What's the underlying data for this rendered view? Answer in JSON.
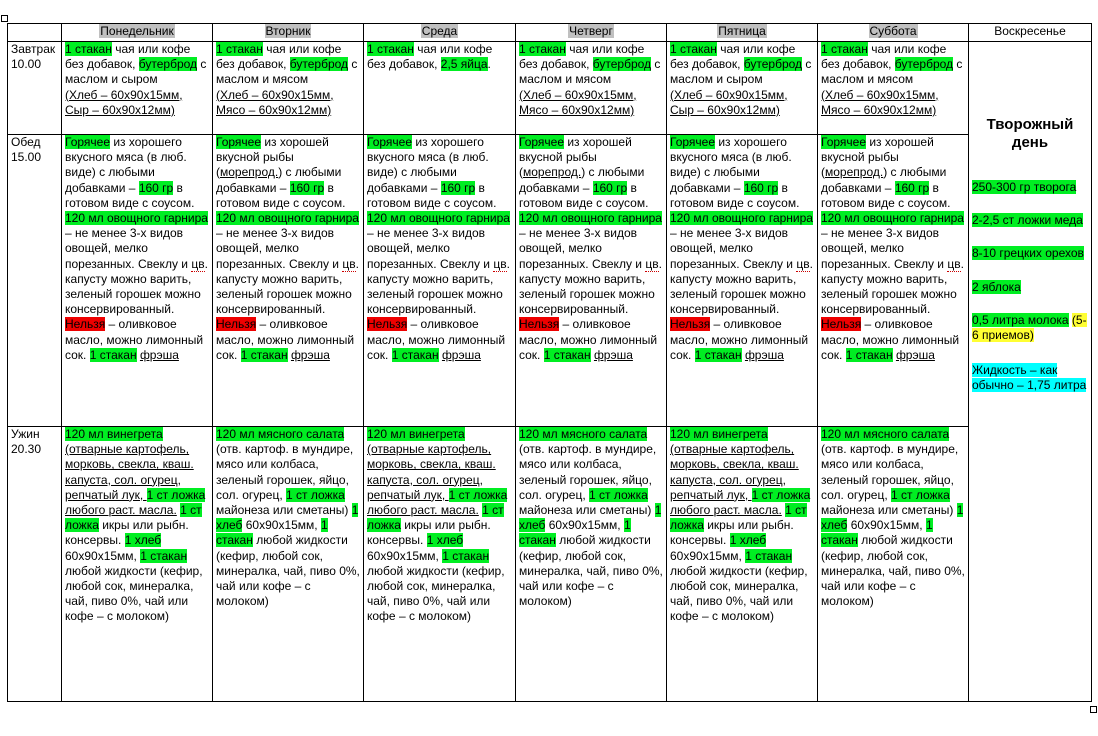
{
  "days": [
    "Понедельник",
    "Вторник",
    "Среда",
    "Четверг",
    "Пятница",
    "Суббота",
    "Воскресенье"
  ],
  "meals": {
    "breakfast": {
      "name": "Завтрак",
      "time": "10.00"
    },
    "lunch": {
      "name": "Обед",
      "time": "15.00"
    },
    "dinner": {
      "name": "Ужин",
      "time": "20.30"
    }
  },
  "breakfast": {
    "cup": "1 стакан",
    "drink": " чая или кофе без добавок, ",
    "sandwich": "бутерброд",
    "with_butter": " с маслом и ",
    "cheese": "сыром",
    "meat": "мясом",
    "note_cheese": "(Хлеб – 60х90х15мм, Сыр – 60х90х12мм)",
    "note_meat": "(Хлеб – 60х90х15мм, Мясо – 60х90х12мм)",
    "wed_drink": " чая или кофе без добавок, ",
    "wed_eggs": "2,5 яйца",
    "wed_dot": "."
  },
  "lunch": {
    "hot": "Горячее",
    "meat_text": " из хорошего вкусного мяса (в люб. виде) с любыми добавками – ",
    "fish_text1": " из хорошей вкусной рыбы (",
    "fish_seafood": "морепрод.",
    "fish_text2": ") с любыми добавками – ",
    "grams": "160 гр",
    "ready": " в готовом виде с соусом. ",
    "veg_hl": "120 мл овощного гарнира",
    "veg_text": " – не менее 3-х видов овощей, мелко порезанных. Свеклу и ",
    "veg_cv": "цв",
    "veg_text2": ". капусту можно варить, зеленый горошек можно консервированный. ",
    "forbidden": "Нельзя",
    "forbidden_text": " – оливковое масло, можно лимонный сок. ",
    "fresh_hl": "1  стакан",
    "fresh": "фрэша"
  },
  "dinner": {
    "vin_hl": "120 мл винегрета",
    "vin_text": "(отварные картофель, морковь, свекла, кваш. капуста, сол. огурец, репчатый лук, ",
    "vin_spoon": "1 ст ложка",
    "vin_text2": " любого раст. масла.",
    "spoon_hl": "1 ст ложка",
    "caviar": " икры или рыбн. консервы. ",
    "bread_hl": "1 хлеб",
    "bread_size": " 60х90х15мм, ",
    "cup_hl": "1 стакан",
    "liquid": " любой жидкости (кефир, любой сок, минералка, чай, пиво 0%, чай или кофе – с молоком)",
    "salad_hl": "120 мл мясного салата",
    "salad_text": " (отв. картоф. в мундире, мясо или колбаса, зеленый горошек, яйцо, сол. огурец, ",
    "salad_spoon": "1 ст ложка",
    "salad_text2": " майонеза или сметаны) ",
    "salad_bread": "1 хлеб",
    "salad_size": " 60х90х15мм, "
  },
  "sunday": {
    "title": "Творожный день",
    "cottage": "250-300 гр творога",
    "honey": "2-2,5 ст ложки меда",
    "nuts": "8-10 грецких орехов",
    "apples": "2 яблока",
    "milk": "0,5 литра молока",
    "portions": "(5-6 приемов)",
    "liquid": "Жидкость – как обычно – 1,75 литра"
  }
}
